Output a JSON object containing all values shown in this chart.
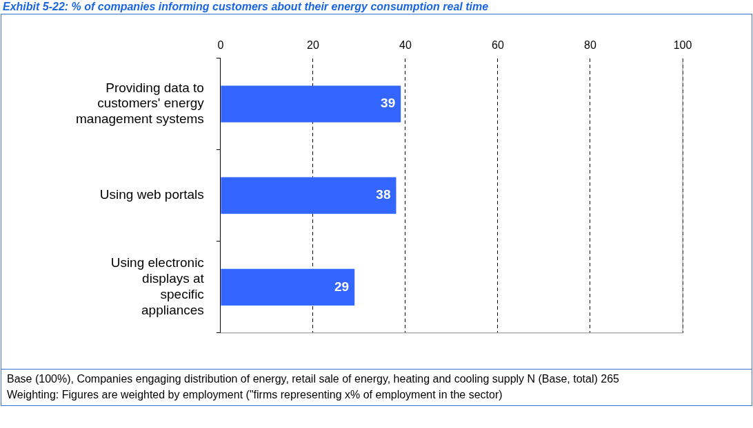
{
  "chart_data": {
    "type": "bar",
    "orientation": "horizontal",
    "title": "Exhibit 5-22: % of companies informing customers about their energy consumption real time",
    "categories": [
      "Providing data to customers' energy management systems",
      "Using web portals",
      "Using electronic displays at specific appliances"
    ],
    "series": [
      {
        "color": "#3366ff",
        "values": [
          39,
          38,
          29
        ]
      }
    ],
    "xlim": [
      0,
      100
    ],
    "xticks": [
      0,
      20,
      40,
      60,
      80,
      100
    ],
    "grid": "x",
    "legend": false,
    "data_labels": true,
    "annotations": [
      "Base (100%), Companies engaging distribution of energy, retail sale of energy, heating and cooling supply N (Base, total) 265",
      "Weighting: Figures are weighted by employment (\"firms representing x% of employment in the sector)"
    ]
  }
}
